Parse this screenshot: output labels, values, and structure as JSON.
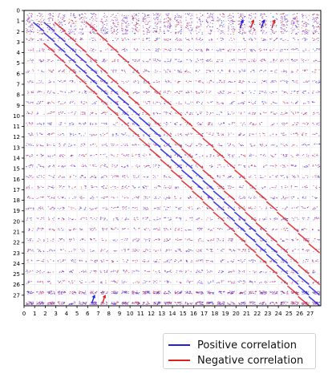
{
  "chart_data": {
    "type": "heatmap",
    "title": "",
    "xlabel": "",
    "ylabel": "",
    "x_ticks": [
      "0",
      "1",
      "2",
      "3",
      "4",
      "5",
      "6",
      "7",
      "8",
      "9",
      "10",
      "11",
      "12",
      "13",
      "14",
      "15",
      "16",
      "17",
      "18",
      "19",
      "20",
      "21",
      "22",
      "23",
      "24",
      "25",
      "26",
      "27"
    ],
    "y_ticks": [
      "0",
      "1",
      "2",
      "3",
      "4",
      "5",
      "6",
      "7",
      "8",
      "9",
      "10",
      "11",
      "12",
      "13",
      "14",
      "15",
      "16",
      "17",
      "18",
      "19",
      "20",
      "21",
      "22",
      "23",
      "24",
      "25",
      "26",
      "27"
    ],
    "xlim": [
      0,
      28
    ],
    "ylim": [
      28,
      0
    ],
    "grid": true,
    "legend_position": "bottom-right",
    "series": [
      {
        "name": "Positive correlation",
        "color": "#1f1fe0"
      },
      {
        "name": "Negative correlation",
        "color": "#e02020"
      }
    ],
    "features": [
      {
        "type": "diagonal_band",
        "color": "positive",
        "x_start": 1,
        "x_end": 27,
        "y_offset": 0
      },
      {
        "type": "diagonal_band",
        "color": "positive",
        "x_start": 2,
        "x_end": 27,
        "y_offset": -1
      },
      {
        "type": "diagonal_band",
        "color": "negative",
        "x_start": 3,
        "x_end": 27,
        "y_offset": -2
      },
      {
        "type": "diagonal_band",
        "color": "negative",
        "x_start": 2,
        "x_end": 27,
        "y_offset": 1
      },
      {
        "type": "diagonal_band",
        "color": "negative",
        "x_start": 6,
        "x_end": 27,
        "y_offset": -5
      }
    ],
    "arrows": [
      {
        "x": 20.5,
        "y": 1.3,
        "color": "positive"
      },
      {
        "x": 21.5,
        "y": 1.3,
        "color": "negative"
      },
      {
        "x": 22.5,
        "y": 1.3,
        "color": "positive"
      },
      {
        "x": 23.5,
        "y": 1.3,
        "color": "negative"
      },
      {
        "x": 6.5,
        "y": 27.4,
        "color": "positive"
      },
      {
        "x": 7.5,
        "y": 27.4,
        "color": "negative"
      }
    ]
  }
}
